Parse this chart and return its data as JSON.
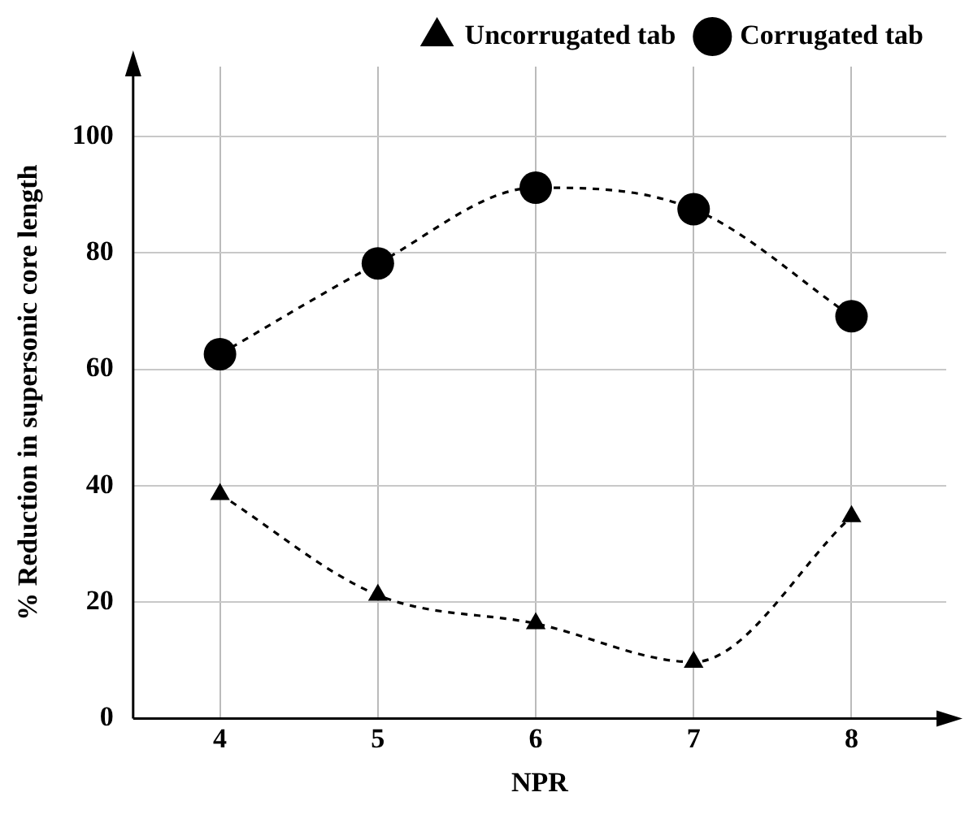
{
  "chart_data": {
    "type": "line",
    "xlabel": "NPR",
    "ylabel": "% Reduction in supersonic core length",
    "x": [
      4,
      5,
      6,
      7,
      8
    ],
    "series": [
      {
        "name": "Uncorrugated tab",
        "color": "#000000",
        "marker": "triangle",
        "values": [
          38.5,
          21.2,
          16.3,
          9.7,
          34.7
        ]
      },
      {
        "name": "Corrugated tab",
        "color": "#000000",
        "marker": "circle",
        "values": [
          62.6,
          78.2,
          91.2,
          87.5,
          69.1
        ]
      }
    ],
    "xlim": [
      3.45,
      8.6
    ],
    "xticks": [
      4,
      5,
      6,
      7,
      8
    ],
    "ylim": [
      0,
      112
    ],
    "yticks": [
      0,
      20,
      40,
      60,
      80,
      100
    ],
    "grid": true,
    "legend": "top",
    "line_style": "dashed"
  }
}
